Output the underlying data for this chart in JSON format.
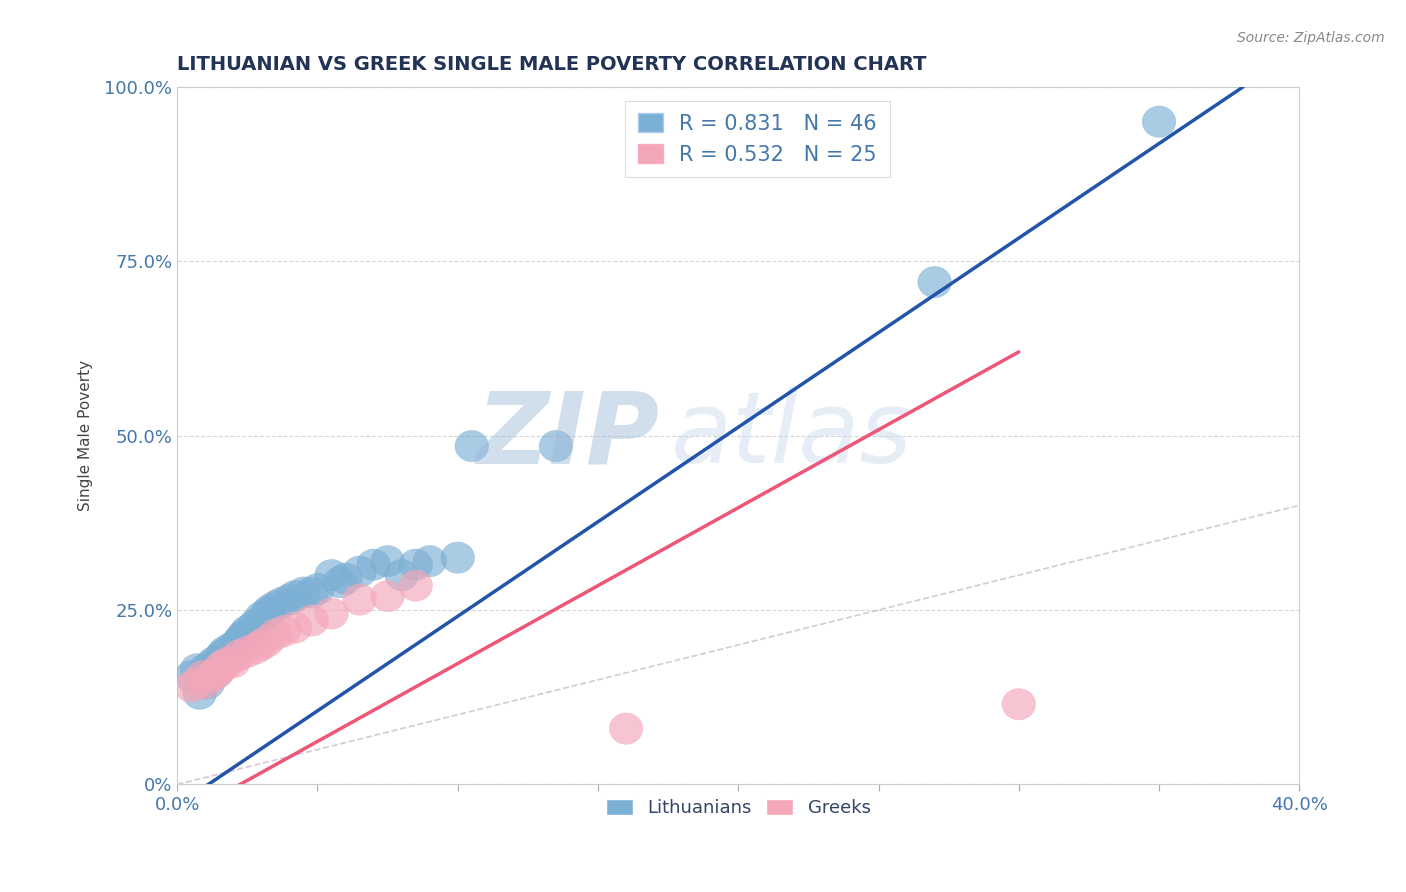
{
  "title": "LITHUANIAN VS GREEK SINGLE MALE POVERTY CORRELATION CHART",
  "source_text": "Source: ZipAtlas.com",
  "ylabel": "Single Male Poverty",
  "xlim": [
    0.0,
    0.4
  ],
  "ylim": [
    0.0,
    1.0
  ],
  "r_blue": 0.831,
  "n_blue": 46,
  "r_pink": 0.532,
  "n_pink": 25,
  "blue_color": "#7BAFD4",
  "pink_color": "#F4A7B9",
  "blue_line_color": "#2255AA",
  "pink_line_color": "#EE5577",
  "ref_line_color": "#CCBBCC",
  "watermark_zip": "ZIP",
  "watermark_atlas": "atlas",
  "watermark_color": "#C8D8EE",
  "legend_label_blue": "Lithuanians",
  "legend_label_pink": "Greeks",
  "title_color": "#223355",
  "axis_label_color": "#4477AA",
  "tick_color": "#4477AA",
  "blue_scatter": [
    [
      0.005,
      0.155
    ],
    [
      0.007,
      0.165
    ],
    [
      0.008,
      0.13
    ],
    [
      0.009,
      0.145
    ],
    [
      0.01,
      0.155
    ],
    [
      0.01,
      0.165
    ],
    [
      0.011,
      0.145
    ],
    [
      0.012,
      0.17
    ],
    [
      0.013,
      0.175
    ],
    [
      0.014,
      0.16
    ],
    [
      0.015,
      0.18
    ],
    [
      0.016,
      0.185
    ],
    [
      0.017,
      0.19
    ],
    [
      0.019,
      0.195
    ],
    [
      0.02,
      0.185
    ],
    [
      0.021,
      0.2
    ],
    [
      0.022,
      0.205
    ],
    [
      0.023,
      0.21
    ],
    [
      0.024,
      0.215
    ],
    [
      0.025,
      0.22
    ],
    [
      0.027,
      0.225
    ],
    [
      0.028,
      0.23
    ],
    [
      0.03,
      0.24
    ],
    [
      0.032,
      0.245
    ],
    [
      0.033,
      0.25
    ],
    [
      0.035,
      0.255
    ],
    [
      0.037,
      0.26
    ],
    [
      0.04,
      0.265
    ],
    [
      0.042,
      0.27
    ],
    [
      0.045,
      0.275
    ],
    [
      0.048,
      0.275
    ],
    [
      0.05,
      0.28
    ],
    [
      0.055,
      0.3
    ],
    [
      0.058,
      0.29
    ],
    [
      0.06,
      0.295
    ],
    [
      0.065,
      0.305
    ],
    [
      0.07,
      0.315
    ],
    [
      0.075,
      0.32
    ],
    [
      0.08,
      0.3
    ],
    [
      0.085,
      0.315
    ],
    [
      0.09,
      0.32
    ],
    [
      0.1,
      0.325
    ],
    [
      0.105,
      0.485
    ],
    [
      0.135,
      0.485
    ],
    [
      0.27,
      0.72
    ],
    [
      0.35,
      0.95
    ]
  ],
  "pink_scatter": [
    [
      0.005,
      0.14
    ],
    [
      0.007,
      0.145
    ],
    [
      0.009,
      0.155
    ],
    [
      0.01,
      0.145
    ],
    [
      0.012,
      0.155
    ],
    [
      0.014,
      0.16
    ],
    [
      0.015,
      0.165
    ],
    [
      0.016,
      0.17
    ],
    [
      0.018,
      0.175
    ],
    [
      0.02,
      0.175
    ],
    [
      0.022,
      0.185
    ],
    [
      0.025,
      0.19
    ],
    [
      0.028,
      0.195
    ],
    [
      0.03,
      0.2
    ],
    [
      0.032,
      0.205
    ],
    [
      0.035,
      0.215
    ],
    [
      0.038,
      0.22
    ],
    [
      0.042,
      0.225
    ],
    [
      0.048,
      0.235
    ],
    [
      0.055,
      0.245
    ],
    [
      0.065,
      0.265
    ],
    [
      0.075,
      0.27
    ],
    [
      0.085,
      0.285
    ],
    [
      0.16,
      0.08
    ],
    [
      0.3,
      0.115
    ]
  ],
  "blue_line_pts": [
    [
      0.0,
      -0.03
    ],
    [
      0.38,
      1.0
    ]
  ],
  "pink_line_pts": [
    [
      0.0,
      -0.05
    ],
    [
      0.3,
      0.62
    ]
  ],
  "ref_line_pts": [
    [
      0.0,
      0.0
    ],
    [
      1.0,
      1.0
    ]
  ]
}
